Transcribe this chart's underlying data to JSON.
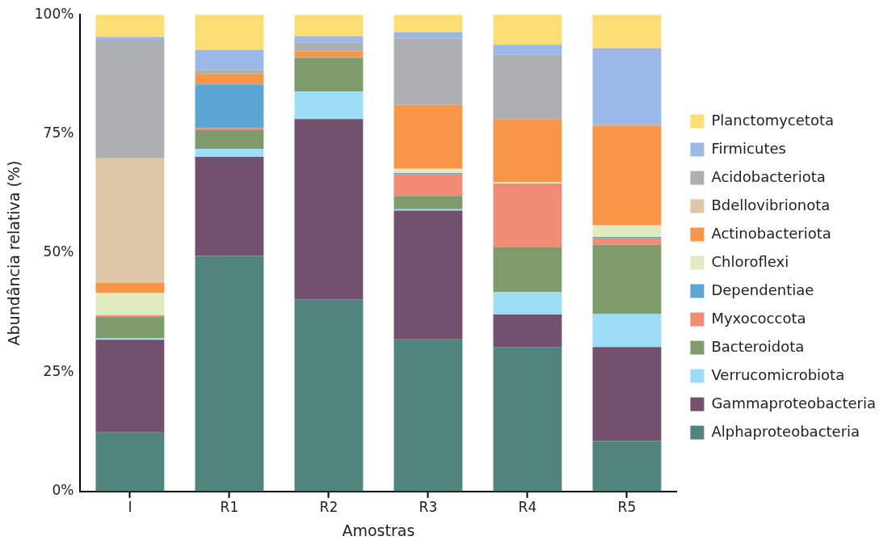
{
  "chart_data": {
    "type": "bar",
    "stacked": true,
    "xlabel": "Amostras",
    "ylabel": "Abundância relativa (%)",
    "categories": [
      "I",
      "R1",
      "R2",
      "R3",
      "R4",
      "R5"
    ],
    "ylim": [
      0,
      100
    ],
    "yticks": [
      {
        "value": 0,
        "label": "0%"
      },
      {
        "value": 25,
        "label": "25%"
      },
      {
        "value": 50,
        "label": "50%"
      },
      {
        "value": 75,
        "label": "75%"
      },
      {
        "value": 100,
        "label": "100%"
      }
    ],
    "grid": false,
    "legend": "right",
    "series": [
      {
        "name": "Alphaproteobacteria",
        "color": "#51847c",
        "values": [
          12.4,
          49.4,
          40.3,
          31.9,
          30.3,
          10.6
        ]
      },
      {
        "name": "Gammaproteobacteria",
        "color": "#73506e",
        "values": [
          19.4,
          20.8,
          37.8,
          27.0,
          6.8,
          19.7
        ]
      },
      {
        "name": "Verrucomicrobiota",
        "color": "#9ddcf5",
        "values": [
          0.3,
          1.7,
          5.8,
          0.3,
          4.7,
          7.0
        ]
      },
      {
        "name": "Bacteroidota",
        "color": "#7e9c6b",
        "values": [
          4.6,
          3.9,
          7.0,
          2.8,
          9.4,
          14.5
        ]
      },
      {
        "name": "Myxococcota",
        "color": "#f28b74",
        "values": [
          0.3,
          0.4,
          0,
          4.5,
          13.4,
          1.3
        ]
      },
      {
        "name": "Dependentiae",
        "color": "#5da5d3",
        "values": [
          0,
          9.2,
          0.2,
          0.3,
          0,
          0.3
        ]
      },
      {
        "name": "Chloroflexi",
        "color": "#e2eac0",
        "values": [
          4.6,
          0,
          0,
          0.9,
          0.3,
          2.4
        ]
      },
      {
        "name": "Actinobacteriota",
        "color": "#f79646",
        "values": [
          2.2,
          2.2,
          1.2,
          13.4,
          13.2,
          20.9
        ]
      },
      {
        "name": "Bdellovibrionota",
        "color": "#dfc6a7",
        "values": [
          26.1,
          0,
          0,
          0,
          0,
          0
        ]
      },
      {
        "name": "Acidobacteriota",
        "color": "#adb0b3",
        "values": [
          24.7,
          0.8,
          1.9,
          13.9,
          13.5,
          0.4
        ]
      },
      {
        "name": "Firmicutes",
        "color": "#9cb8e7",
        "values": [
          0.7,
          4.2,
          1.3,
          1.3,
          2.1,
          15.8
        ]
      },
      {
        "name": "Planctomycetota",
        "color": "#fcde74",
        "values": [
          4.7,
          7.4,
          4.5,
          3.7,
          6.4,
          7.1
        ]
      }
    ]
  }
}
